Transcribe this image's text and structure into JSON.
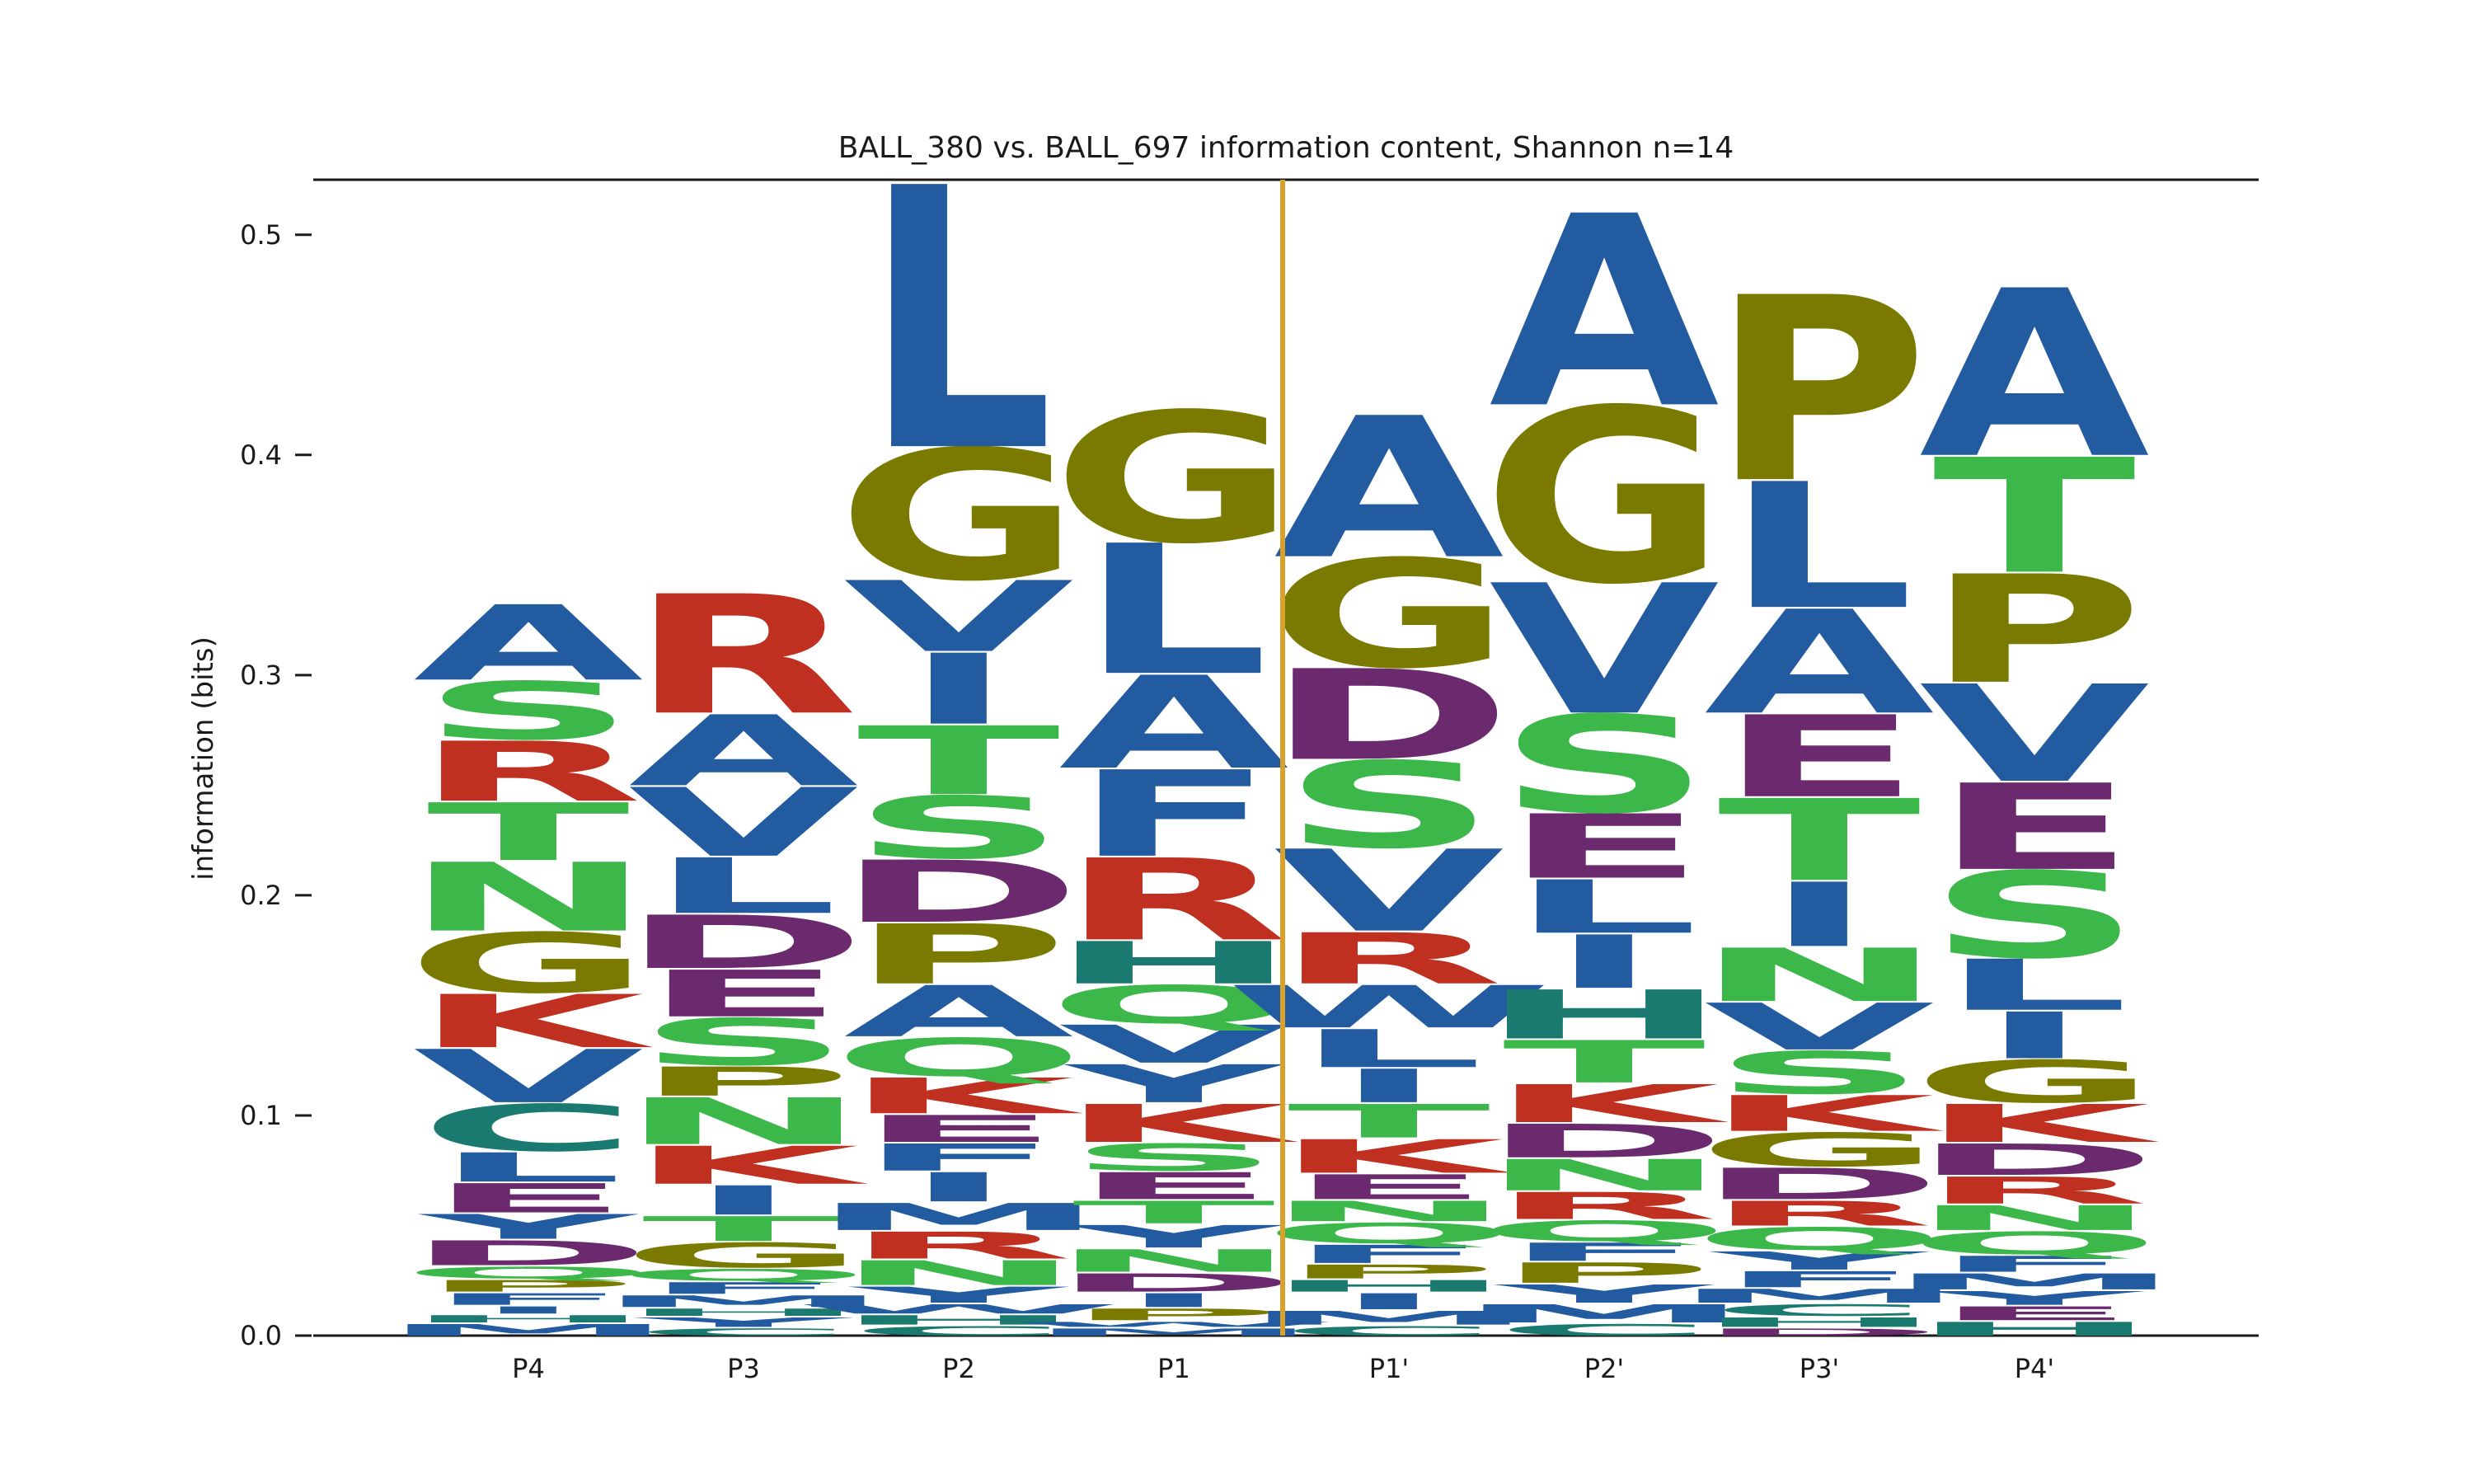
{
  "chart_data": {
    "type": "sequence-logo",
    "title": "BALL_380 vs. BALL_697 information content, Shannon n=14",
    "ylabel": "information (bits)",
    "xlabel": "",
    "ylim": [
      0,
      0.525
    ],
    "yticks": [
      0.0,
      0.1,
      0.2,
      0.3,
      0.4,
      0.5
    ],
    "positions": [
      "P4",
      "P3",
      "P2",
      "P1",
      "P1'",
      "P2'",
      "P3'",
      "P4'"
    ],
    "cleavage_marker": "between P1 and P1'",
    "colors": {
      "A": "#235ba0",
      "V": "#235ba0",
      "L": "#235ba0",
      "I": "#235ba0",
      "F": "#235ba0",
      "W": "#235ba0",
      "Y": "#235ba0",
      "M": "#235ba0",
      "G": "#7a7a00",
      "P": "#7a7a00",
      "S": "#3cb84a",
      "T": "#3cb84a",
      "N": "#3cb84a",
      "Q": "#3cb84a",
      "D": "#6b2a6e",
      "E": "#6b2a6e",
      "R": "#c03020",
      "K": "#c03020",
      "H": "#1a7a70",
      "C": "#1a7a70",
      "divider": "#d9a12a"
    },
    "stacks": [
      {
        "position": "P4",
        "letters": [
          {
            "aa": "M",
            "bits": 0.006
          },
          {
            "aa": "H",
            "bits": 0.004
          },
          {
            "aa": "I",
            "bits": 0.004
          },
          {
            "aa": "F",
            "bits": 0.006
          },
          {
            "aa": "P",
            "bits": 0.006
          },
          {
            "aa": "Q",
            "bits": 0.006
          },
          {
            "aa": "D",
            "bits": 0.012
          },
          {
            "aa": "Y",
            "bits": 0.012
          },
          {
            "aa": "E",
            "bits": 0.014
          },
          {
            "aa": "L",
            "bits": 0.014
          },
          {
            "aa": "C",
            "bits": 0.022
          },
          {
            "aa": "V",
            "bits": 0.025
          },
          {
            "aa": "K",
            "bits": 0.025
          },
          {
            "aa": "G",
            "bits": 0.028
          },
          {
            "aa": "N",
            "bits": 0.032
          },
          {
            "aa": "T",
            "bits": 0.027
          },
          {
            "aa": "R",
            "bits": 0.028
          },
          {
            "aa": "S",
            "bits": 0.027
          },
          {
            "aa": "A",
            "bits": 0.035
          }
        ]
      },
      {
        "position": "P3",
        "letters": [
          {
            "aa": "C",
            "bits": 0.004
          },
          {
            "aa": "Y",
            "bits": 0.005
          },
          {
            "aa": "H",
            "bits": 0.004
          },
          {
            "aa": "M",
            "bits": 0.006
          },
          {
            "aa": "F",
            "bits": 0.006
          },
          {
            "aa": "Q",
            "bits": 0.006
          },
          {
            "aa": "G",
            "bits": 0.012
          },
          {
            "aa": "T",
            "bits": 0.012
          },
          {
            "aa": "I",
            "bits": 0.014
          },
          {
            "aa": "K",
            "bits": 0.018
          },
          {
            "aa": "N",
            "bits": 0.022
          },
          {
            "aa": "P",
            "bits": 0.014
          },
          {
            "aa": "S",
            "bits": 0.022
          },
          {
            "aa": "E",
            "bits": 0.022
          },
          {
            "aa": "D",
            "bits": 0.025
          },
          {
            "aa": "L",
            "bits": 0.026
          },
          {
            "aa": "V",
            "bits": 0.032
          },
          {
            "aa": "A",
            "bits": 0.033
          },
          {
            "aa": "R",
            "bits": 0.055
          }
        ]
      },
      {
        "position": "P2",
        "letters": [
          {
            "aa": "C",
            "bits": 0.005
          },
          {
            "aa": "H",
            "bits": 0.005
          },
          {
            "aa": "W",
            "bits": 0.005
          },
          {
            "aa": "Y",
            "bits": 0.008
          },
          {
            "aa": "N",
            "bits": 0.012
          },
          {
            "aa": "R",
            "bits": 0.013
          },
          {
            "aa": "M",
            "bits": 0.013
          },
          {
            "aa": "I",
            "bits": 0.014
          },
          {
            "aa": "F",
            "bits": 0.013
          },
          {
            "aa": "E",
            "bits": 0.013
          },
          {
            "aa": "K",
            "bits": 0.017
          },
          {
            "aa": "Q",
            "bits": 0.018
          },
          {
            "aa": "A",
            "bits": 0.024
          },
          {
            "aa": "P",
            "bits": 0.028
          },
          {
            "aa": "D",
            "bits": 0.029
          },
          {
            "aa": "S",
            "bits": 0.029
          },
          {
            "aa": "T",
            "bits": 0.032
          },
          {
            "aa": "I",
            "bits": 0.033
          },
          {
            "aa": "V",
            "bits": 0.033
          },
          {
            "aa": "G",
            "bits": 0.06
          },
          {
            "aa": "L",
            "bits": 0.12
          }
        ]
      },
      {
        "position": "P1",
        "letters": [
          {
            "aa": "M",
            "bits": 0.004
          },
          {
            "aa": "W",
            "bits": 0.003
          },
          {
            "aa": "P",
            "bits": 0.006
          },
          {
            "aa": "I",
            "bits": 0.007
          },
          {
            "aa": "D",
            "bits": 0.009
          },
          {
            "aa": "N",
            "bits": 0.011
          },
          {
            "aa": "Y",
            "bits": 0.011
          },
          {
            "aa": "T",
            "bits": 0.011
          },
          {
            "aa": "E",
            "bits": 0.013
          },
          {
            "aa": "S",
            "bits": 0.013
          },
          {
            "aa": "K",
            "bits": 0.018
          },
          {
            "aa": "Y",
            "bits": 0.018
          },
          {
            "aa": "V",
            "bits": 0.018
          },
          {
            "aa": "Q",
            "bits": 0.018
          },
          {
            "aa": "H",
            "bits": 0.02
          },
          {
            "aa": "R",
            "bits": 0.038
          },
          {
            "aa": "F",
            "bits": 0.04
          },
          {
            "aa": "A",
            "bits": 0.043
          },
          {
            "aa": "L",
            "bits": 0.06
          },
          {
            "aa": "G",
            "bits": 0.06
          }
        ]
      },
      {
        "position": "P1'",
        "letters": [
          {
            "aa": "C",
            "bits": 0.005
          },
          {
            "aa": "M",
            "bits": 0.007
          },
          {
            "aa": "I",
            "bits": 0.008
          },
          {
            "aa": "H",
            "bits": 0.006
          },
          {
            "aa": "P",
            "bits": 0.007
          },
          {
            "aa": "F",
            "bits": 0.009
          },
          {
            "aa": "Q",
            "bits": 0.01
          },
          {
            "aa": "N",
            "bits": 0.01
          },
          {
            "aa": "E",
            "bits": 0.012
          },
          {
            "aa": "K",
            "bits": 0.016
          },
          {
            "aa": "T",
            "bits": 0.016
          },
          {
            "aa": "I",
            "bits": 0.016
          },
          {
            "aa": "L",
            "bits": 0.018
          },
          {
            "aa": "W",
            "bits": 0.02
          },
          {
            "aa": "R",
            "bits": 0.024
          },
          {
            "aa": "V",
            "bits": 0.038
          },
          {
            "aa": "S",
            "bits": 0.04
          },
          {
            "aa": "D",
            "bits": 0.042
          },
          {
            "aa": "G",
            "bits": 0.05
          },
          {
            "aa": "A",
            "bits": 0.065
          }
        ]
      },
      {
        "position": "P2'",
        "letters": [
          {
            "aa": "C",
            "bits": 0.006
          },
          {
            "aa": "M",
            "bits": 0.009
          },
          {
            "aa": "Y",
            "bits": 0.009
          },
          {
            "aa": "P",
            "bits": 0.01
          },
          {
            "aa": "F",
            "bits": 0.009
          },
          {
            "aa": "Q",
            "bits": 0.01
          },
          {
            "aa": "R",
            "bits": 0.013
          },
          {
            "aa": "N",
            "bits": 0.015
          },
          {
            "aa": "D",
            "bits": 0.016
          },
          {
            "aa": "K",
            "bits": 0.018
          },
          {
            "aa": "T",
            "bits": 0.02
          },
          {
            "aa": "H",
            "bits": 0.023
          },
          {
            "aa": "I",
            "bits": 0.025
          },
          {
            "aa": "L",
            "bits": 0.025
          },
          {
            "aa": "E",
            "bits": 0.03
          },
          {
            "aa": "S",
            "bits": 0.045
          },
          {
            "aa": "V",
            "bits": 0.06
          },
          {
            "aa": "G",
            "bits": 0.08
          },
          {
            "aa": "A",
            "bits": 0.088
          }
        ]
      },
      {
        "position": "P3'",
        "letters": [
          {
            "aa": "D",
            "bits": 0.004
          },
          {
            "aa": "H",
            "bits": 0.005
          },
          {
            "aa": "C",
            "bits": 0.006
          },
          {
            "aa": "M",
            "bits": 0.007
          },
          {
            "aa": "F",
            "bits": 0.008
          },
          {
            "aa": "Y",
            "bits": 0.009
          },
          {
            "aa": "Q",
            "bits": 0.011
          },
          {
            "aa": "R",
            "bits": 0.012
          },
          {
            "aa": "D",
            "bits": 0.015
          },
          {
            "aa": "G",
            "bits": 0.016
          },
          {
            "aa": "K",
            "bits": 0.017
          },
          {
            "aa": "S",
            "bits": 0.02
          },
          {
            "aa": "V",
            "bits": 0.022
          },
          {
            "aa": "N",
            "bits": 0.025
          },
          {
            "aa": "I",
            "bits": 0.03
          },
          {
            "aa": "T",
            "bits": 0.038
          },
          {
            "aa": "E",
            "bits": 0.038
          },
          {
            "aa": "A",
            "bits": 0.048
          },
          {
            "aa": "L",
            "bits": 0.058
          },
          {
            "aa": "P",
            "bits": 0.085
          }
        ]
      },
      {
        "position": "P4'",
        "letters": [
          {
            "aa": "H",
            "bits": 0.007
          },
          {
            "aa": "E",
            "bits": 0.007
          },
          {
            "aa": "Y",
            "bits": 0.007
          },
          {
            "aa": "M",
            "bits": 0.008
          },
          {
            "aa": "F",
            "bits": 0.008
          },
          {
            "aa": "Q",
            "bits": 0.011
          },
          {
            "aa": "N",
            "bits": 0.012
          },
          {
            "aa": "R",
            "bits": 0.013
          },
          {
            "aa": "D",
            "bits": 0.015
          },
          {
            "aa": "K",
            "bits": 0.018
          },
          {
            "aa": "G",
            "bits": 0.02
          },
          {
            "aa": "I",
            "bits": 0.022
          },
          {
            "aa": "L",
            "bits": 0.024
          },
          {
            "aa": "S",
            "bits": 0.04
          },
          {
            "aa": "E",
            "bits": 0.04
          },
          {
            "aa": "V",
            "bits": 0.045
          },
          {
            "aa": "P",
            "bits": 0.05
          },
          {
            "aa": "T",
            "bits": 0.053
          },
          {
            "aa": "A",
            "bits": 0.077
          }
        ]
      }
    ]
  }
}
